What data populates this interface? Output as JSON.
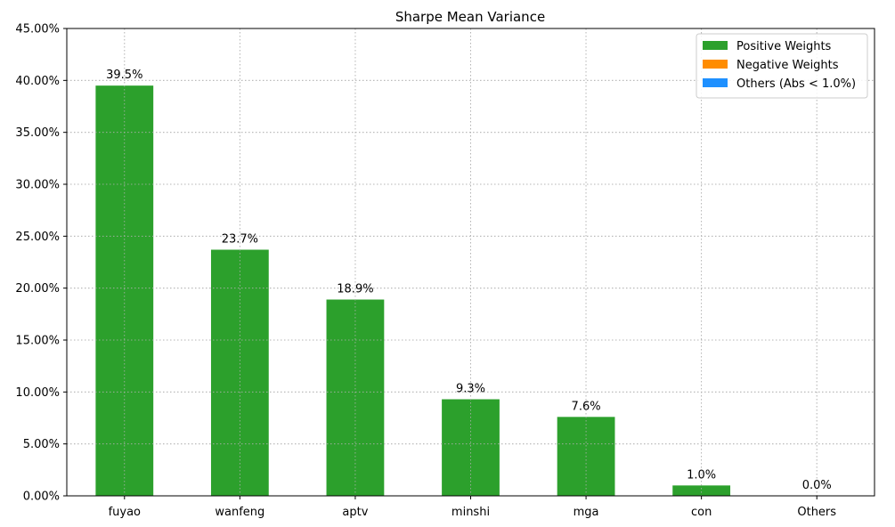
{
  "chart_data": {
    "type": "bar",
    "title": "Sharpe Mean Variance",
    "xlabel": "",
    "ylabel": "",
    "categories": [
      "fuyao",
      "wanfeng",
      "aptv",
      "minshi",
      "mga",
      "con",
      "Others"
    ],
    "values": [
      39.5,
      23.7,
      18.9,
      9.3,
      7.6,
      1.0,
      0.0
    ],
    "bar_value_labels": [
      "39.5%",
      "23.7%",
      "18.9%",
      "9.3%",
      "7.6%",
      "1.0%",
      "0.0%"
    ],
    "ylim": [
      0,
      45
    ],
    "y_ticks": [
      0,
      5,
      10,
      15,
      20,
      25,
      30,
      35,
      40,
      45
    ],
    "y_tick_labels": [
      "0.00%",
      "5.00%",
      "10.00%",
      "15.00%",
      "20.00%",
      "25.00%",
      "30.00%",
      "35.00%",
      "40.00%",
      "45.00%"
    ],
    "grid": true,
    "legend_position": "top-right",
    "legend": [
      {
        "label": "Positive Weights",
        "color": "#2ca02c"
      },
      {
        "label": "Negative Weights",
        "color": "#ff8c00"
      },
      {
        "label": "Others (Abs < 1.0%)",
        "color": "#1e90ff"
      }
    ],
    "bar_color": "#2ca02c"
  }
}
